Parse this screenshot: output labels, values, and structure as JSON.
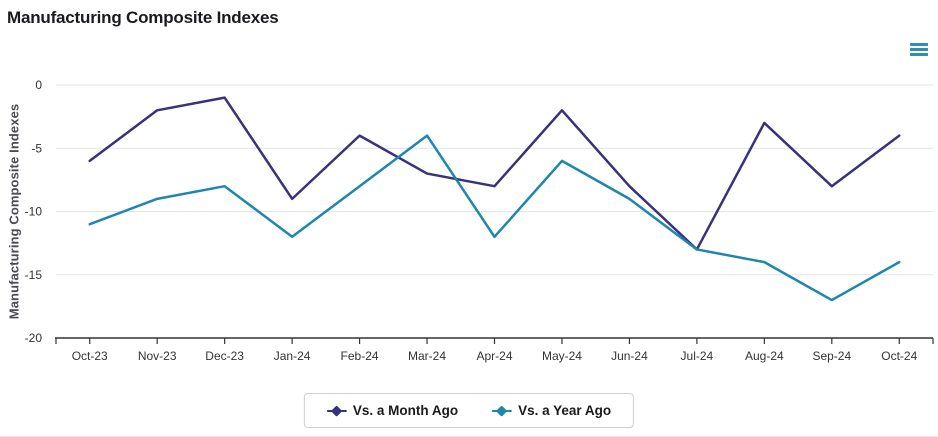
{
  "header": {
    "title": "Manufacturing Composite Indexes"
  },
  "colors": {
    "series_month_ago": "#38317b",
    "series_year_ago": "#1f86ad",
    "grid": "#e4e4e4",
    "axis_line": "#333333",
    "tick_label": "#333333",
    "menu_icon": "#2e8fb2"
  },
  "menu": {
    "icon": "hamburger-icon"
  },
  "chart_data": {
    "type": "line",
    "title": "Manufacturing Composite Indexes",
    "xlabel": "",
    "ylabel": "Manufacturing Composite Indexes",
    "categories": [
      "Oct-23",
      "Nov-23",
      "Dec-23",
      "Jan-24",
      "Feb-24",
      "Mar-24",
      "Apr-24",
      "May-24",
      "Jun-24",
      "Jul-24",
      "Aug-24",
      "Sep-24",
      "Oct-24"
    ],
    "series": [
      {
        "name": "Vs. a Month Ago",
        "color": "#38317b",
        "values": [
          -6,
          -2,
          -1,
          -9,
          -4,
          -7,
          -8,
          -2,
          -8,
          -13,
          -3,
          -8,
          -4
        ]
      },
      {
        "name": "Vs. a Year Ago",
        "color": "#1f86ad",
        "values": [
          -11,
          -9,
          -8,
          -12,
          -8,
          -4,
          -12,
          -6,
          -9,
          -13,
          -14,
          -17,
          -14
        ]
      }
    ],
    "ylim": [
      -20,
      0
    ],
    "yticks": [
      0,
      -5,
      -10,
      -15,
      -20
    ],
    "grid": true,
    "legend_position": "bottom"
  }
}
